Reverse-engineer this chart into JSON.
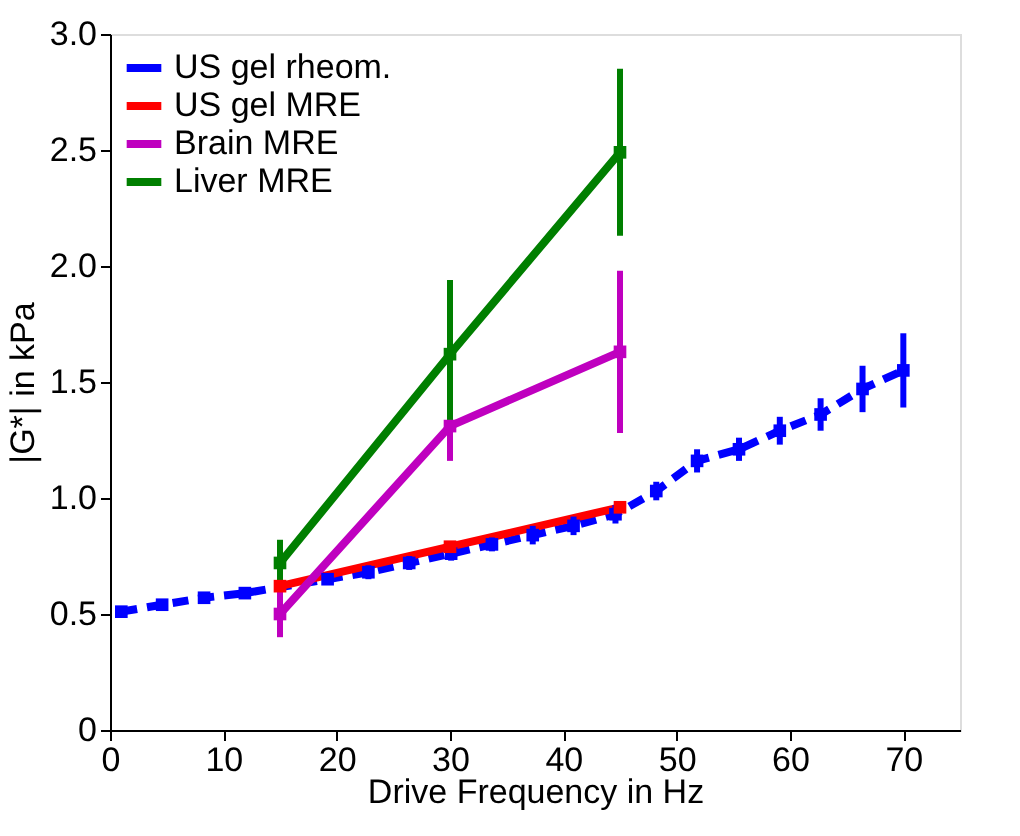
{
  "chart_data": {
    "type": "line",
    "xlabel": "Drive Frequency in Hz",
    "ylabel": "|G*| in kPa",
    "xlim": [
      0,
      75
    ],
    "xticks": [
      0,
      10,
      20,
      30,
      40,
      50,
      60,
      70
    ],
    "ylim": [
      0,
      3
    ],
    "yticks": [
      0,
      {
        "value": 0.5,
        "label": "0.5"
      },
      {
        "value": 1,
        "label": "1.0"
      },
      {
        "value": 1.5,
        "label": "1.5"
      },
      {
        "value": 2,
        "label": "2.0"
      },
      {
        "value": 2.5,
        "label": "2.5"
      },
      {
        "value": 3,
        "label": "3.0"
      }
    ],
    "grid": false,
    "legend": "top left",
    "marker": "square",
    "series": [
      {
        "name": "US gel rheom.",
        "color": "#0000ff",
        "line_style": "dashed",
        "x": [
          1,
          4.6,
          8.3,
          11.9,
          15.5,
          19.2,
          22.8,
          26.4,
          30.1,
          33.7,
          37.3,
          40.9,
          44.6,
          48.2,
          51.8,
          55.5,
          59.1,
          62.7,
          66.4,
          70
        ],
        "values": [
          0.51,
          0.54,
          0.57,
          0.59,
          null,
          0.65,
          0.68,
          0.72,
          0.76,
          0.8,
          0.84,
          0.88,
          0.93,
          1.03,
          1.16,
          1.21,
          1.29,
          1.36,
          1.47,
          1.55
        ],
        "errors": [
          0.01,
          0.01,
          0.01,
          0.01,
          null,
          0.02,
          0.03,
          0.03,
          0.03,
          0.03,
          0.04,
          0.04,
          0.04,
          0.04,
          0.05,
          0.05,
          0.06,
          0.07,
          0.1,
          0.16
        ]
      },
      {
        "name": "US gel MRE",
        "color": "#ff0000",
        "line_style": "solid",
        "x": [
          15,
          30,
          45
        ],
        "values": [
          0.62,
          0.79,
          0.96
        ],
        "errors": [
          0.02,
          0.02,
          0.02
        ]
      },
      {
        "name": "Brain MRE",
        "color": "#bf00bf",
        "line_style": "solid",
        "x": [
          15,
          30,
          45
        ],
        "values": [
          0.5,
          1.31,
          1.63
        ],
        "errors": [
          0.1,
          0.15,
          0.35
        ]
      },
      {
        "name": "Liver MRE",
        "color": "#007f00",
        "line_style": "solid",
        "x": [
          15,
          30,
          45
        ],
        "values": [
          0.72,
          1.62,
          2.49
        ],
        "errors": [
          0.1,
          0.32,
          0.36
        ]
      }
    ]
  }
}
